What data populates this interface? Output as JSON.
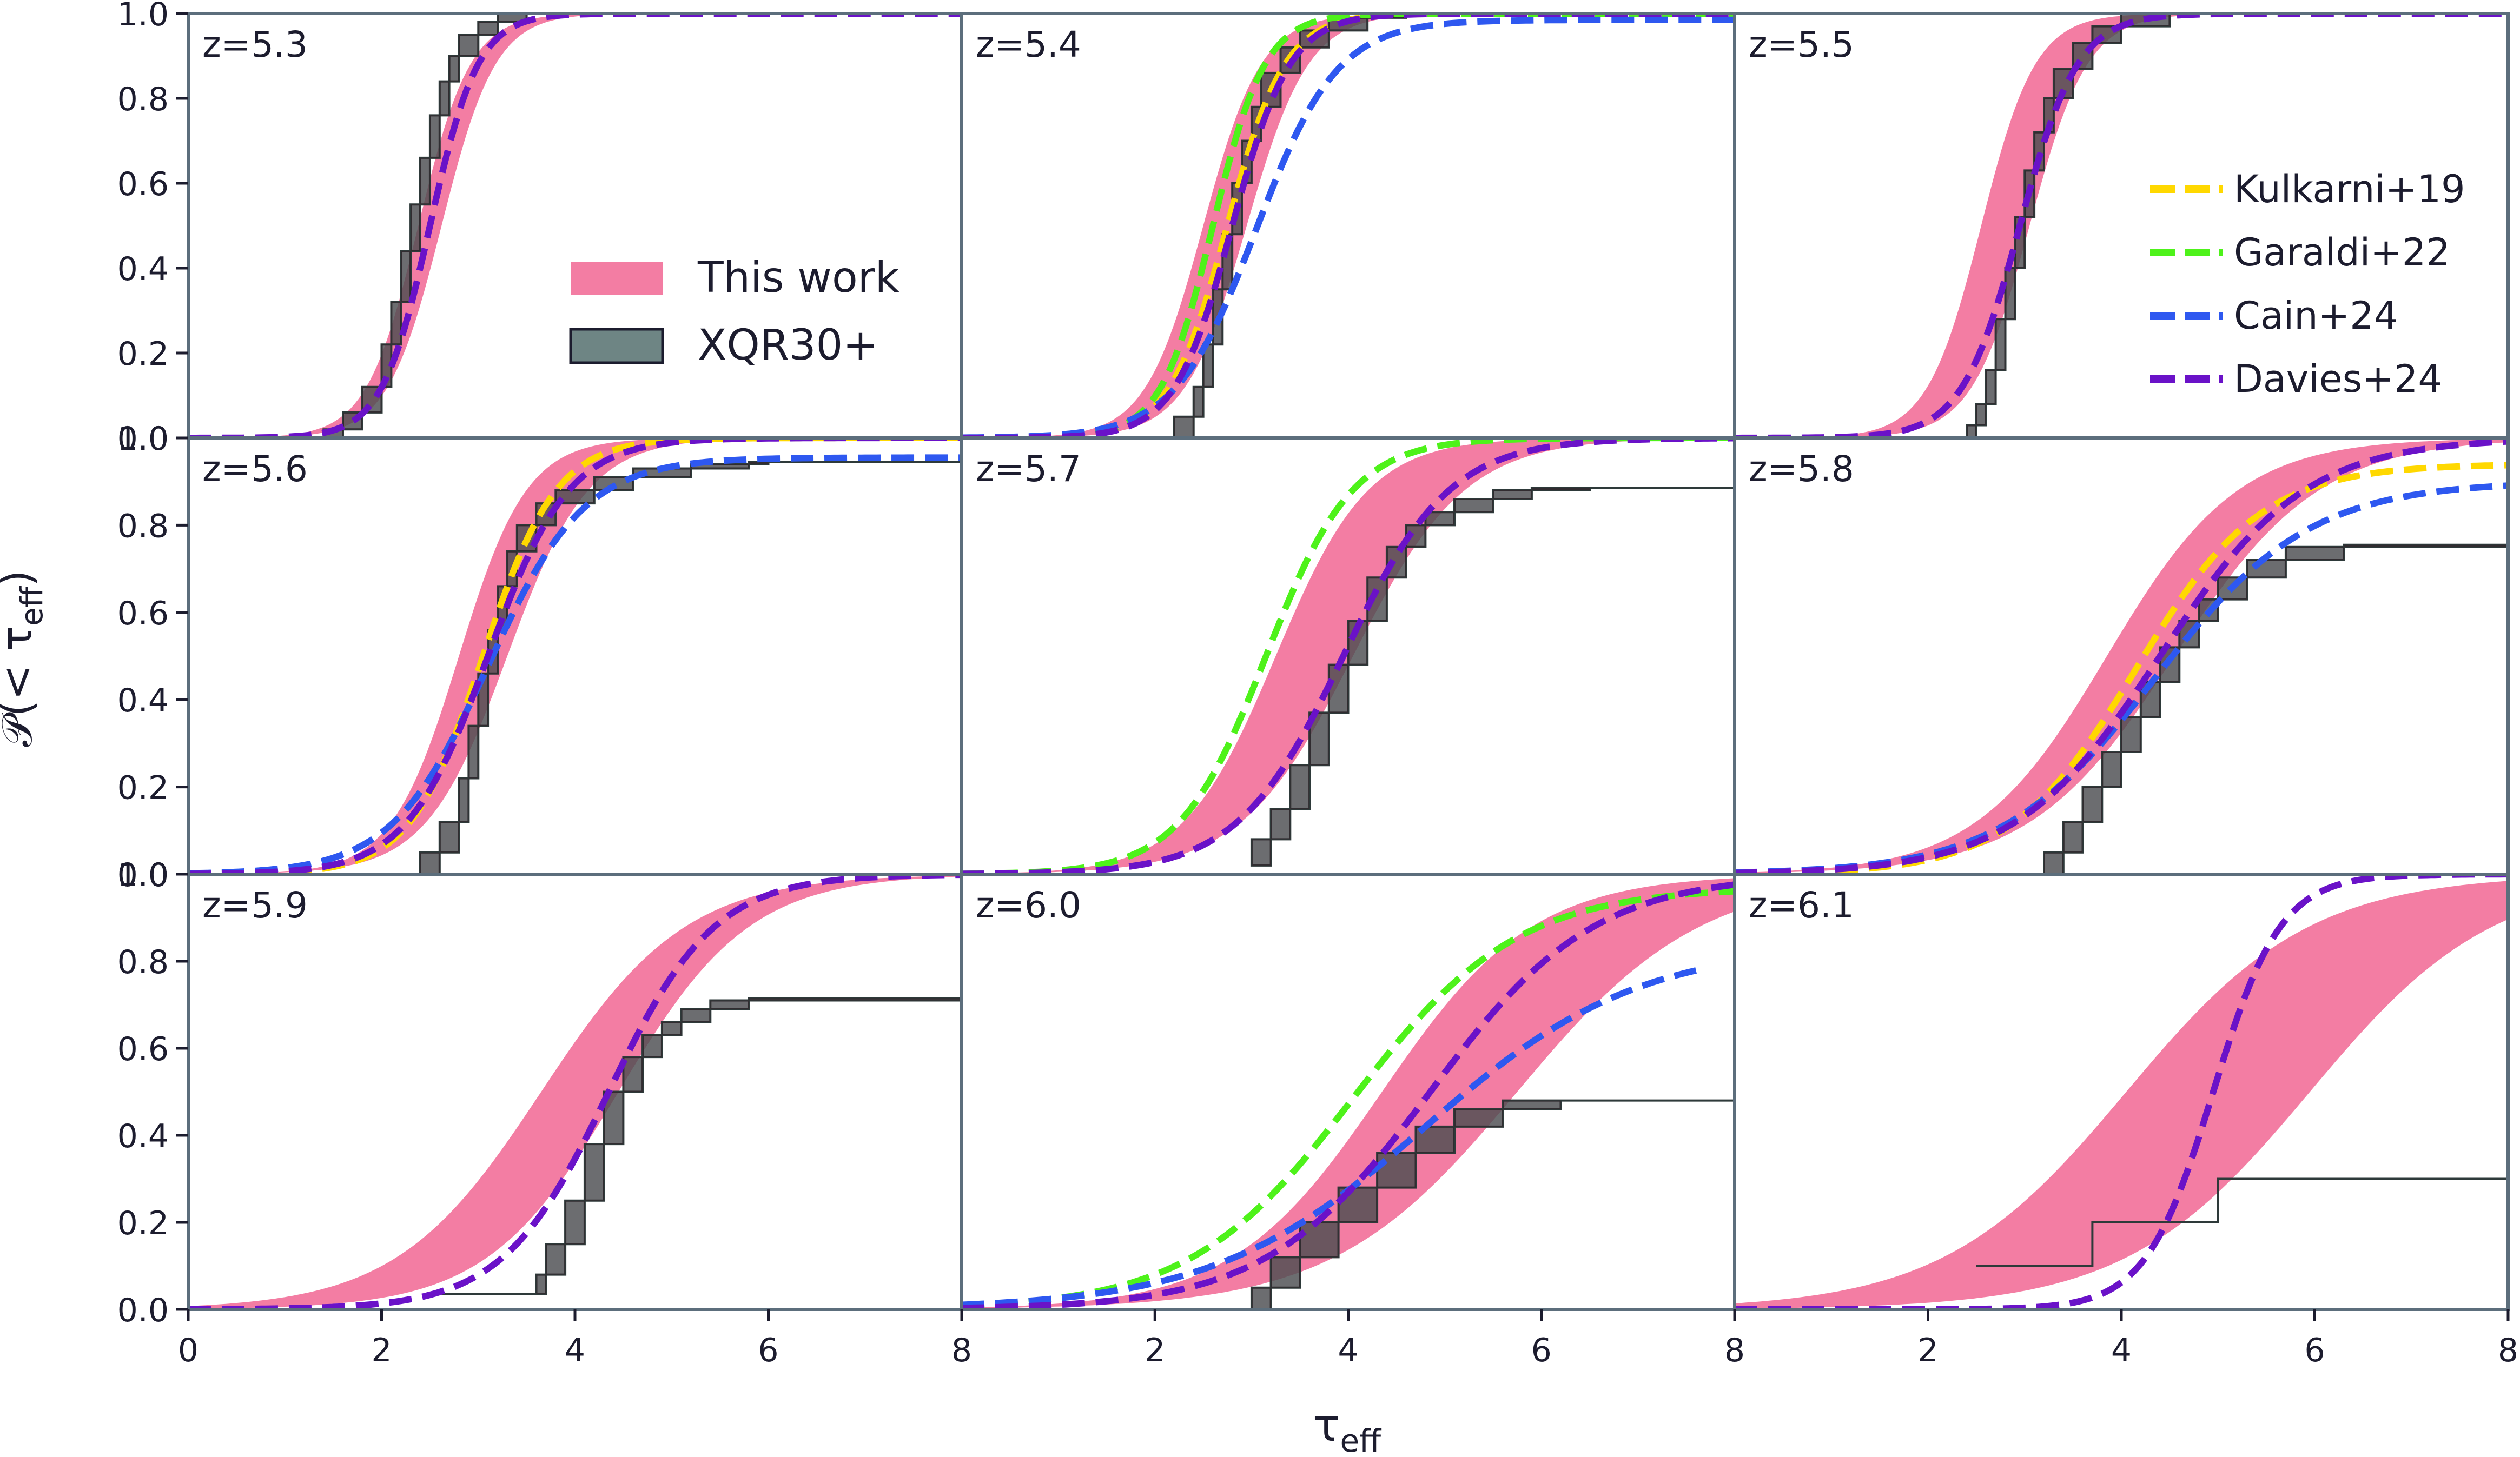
{
  "figure": {
    "ylabel_main": "𝒫(< τ",
    "ylabel_sub": "eff",
    "ylabel_close": ")",
    "xlabel_main": "τ",
    "xlabel_sub": "eff"
  },
  "chart_data": {
    "type": "line",
    "grid": false,
    "xlim": [
      0,
      8
    ],
    "ylim": [
      0,
      1
    ],
    "x_ticks": [
      "0",
      "2",
      "4",
      "6",
      "8"
    ],
    "y_ticks": [
      "0.0",
      "0.2",
      "0.4",
      "0.6",
      "0.8",
      "1.0"
    ],
    "colors": {
      "this_work": "#f0608f",
      "xqr30": "#55706e",
      "kulkarni": "#ffd800",
      "garaldi": "#4ef21a",
      "cain": "#2e58f0",
      "davies": "#6a12c8",
      "frame": "#5c6e7c"
    },
    "legend_left": {
      "location": "center-right of panel z=5.3",
      "entries": [
        {
          "key": "this_work",
          "label": "This work"
        },
        {
          "key": "xqr30",
          "label": "XQR30+"
        }
      ]
    },
    "legend_right": {
      "location": "center-right of panel z=5.5",
      "entries": [
        {
          "key": "kulkarni",
          "label": "Kulkarni+19"
        },
        {
          "key": "garaldi",
          "label": "Garaldi+22"
        },
        {
          "key": "cain",
          "label": "Cain+24"
        },
        {
          "key": "davies",
          "label": "Davies+24"
        }
      ]
    },
    "panels": [
      {
        "z_label": "z=5.3",
        "lo": {
          "m": 2.38,
          "s": 0.27
        },
        "hi": {
          "m": 2.62,
          "s": 0.28
        },
        "xqr": [
          [
            1.4,
            0.0
          ],
          [
            1.6,
            0.02
          ],
          [
            1.8,
            0.06
          ],
          [
            2.0,
            0.12
          ],
          [
            2.1,
            0.22
          ],
          [
            2.2,
            0.32
          ],
          [
            2.3,
            0.44
          ],
          [
            2.4,
            0.55
          ],
          [
            2.5,
            0.66
          ],
          [
            2.6,
            0.76
          ],
          [
            2.7,
            0.84
          ],
          [
            2.8,
            0.9
          ],
          [
            3.0,
            0.95
          ],
          [
            3.2,
            0.98
          ],
          [
            3.5,
            1.0
          ]
        ],
        "xqr_max": 6.0,
        "models": [
          {
            "key": "davies",
            "m": 2.5,
            "s": 0.25
          }
        ]
      },
      {
        "z_label": "z=5.4",
        "lo": {
          "m": 2.5,
          "s": 0.3
        },
        "hi": {
          "m": 2.95,
          "s": 0.32
        },
        "xqr": [
          [
            2.2,
            0.0
          ],
          [
            2.4,
            0.05
          ],
          [
            2.5,
            0.12
          ],
          [
            2.6,
            0.22
          ],
          [
            2.7,
            0.35
          ],
          [
            2.8,
            0.48
          ],
          [
            2.9,
            0.6
          ],
          [
            3.0,
            0.7
          ],
          [
            3.1,
            0.78
          ],
          [
            3.3,
            0.86
          ],
          [
            3.5,
            0.92
          ],
          [
            3.8,
            0.96
          ],
          [
            4.2,
            0.99
          ],
          [
            4.6,
            1.0
          ]
        ],
        "xqr_max": 5.8,
        "models": [
          {
            "key": "kulkarni",
            "m": 2.75,
            "s": 0.3
          },
          {
            "key": "garaldi",
            "m": 2.6,
            "s": 0.27
          },
          {
            "key": "cain",
            "m": 3.05,
            "s": 0.42,
            "cap": 0.985
          },
          {
            "key": "davies",
            "m": 2.8,
            "s": 0.3
          }
        ]
      },
      {
        "z_label": "z=5.5",
        "lo": {
          "m": 2.55,
          "s": 0.28
        },
        "hi": {
          "m": 3.05,
          "s": 0.3
        },
        "xqr": [
          [
            2.4,
            0.0
          ],
          [
            2.5,
            0.03
          ],
          [
            2.6,
            0.08
          ],
          [
            2.7,
            0.16
          ],
          [
            2.8,
            0.28
          ],
          [
            2.9,
            0.4
          ],
          [
            3.0,
            0.52
          ],
          [
            3.1,
            0.63
          ],
          [
            3.2,
            0.72
          ],
          [
            3.3,
            0.8
          ],
          [
            3.5,
            0.87
          ],
          [
            3.7,
            0.93
          ],
          [
            4.0,
            0.97
          ],
          [
            4.5,
            1.0
          ]
        ],
        "xqr_max": 5.9,
        "models": [
          {
            "key": "davies",
            "m": 2.95,
            "s": 0.3
          }
        ]
      },
      {
        "z_label": "z=5.6",
        "lo": {
          "m": 2.8,
          "s": 0.35
        },
        "hi": {
          "m": 3.3,
          "s": 0.42
        },
        "xqr": [
          [
            2.4,
            0.0
          ],
          [
            2.6,
            0.05
          ],
          [
            2.8,
            0.12
          ],
          [
            2.9,
            0.22
          ],
          [
            3.0,
            0.34
          ],
          [
            3.1,
            0.46
          ],
          [
            3.2,
            0.56
          ],
          [
            3.3,
            0.66
          ],
          [
            3.4,
            0.74
          ],
          [
            3.6,
            0.8
          ],
          [
            3.8,
            0.85
          ],
          [
            4.2,
            0.88
          ],
          [
            4.6,
            0.91
          ],
          [
            5.2,
            0.93
          ],
          [
            5.8,
            0.94
          ],
          [
            6.0,
            0.945
          ],
          [
            8.0,
            0.945
          ]
        ],
        "xqr_max": 8.0,
        "xqr_open": true,
        "models": [
          {
            "key": "kulkarni",
            "m": 3.05,
            "s": 0.38
          },
          {
            "key": "cain",
            "m": 3.1,
            "s": 0.5,
            "cap": 0.955
          },
          {
            "key": "davies",
            "m": 3.1,
            "s": 0.42
          }
        ]
      },
      {
        "z_label": "z=5.7",
        "lo": {
          "m": 3.25,
          "s": 0.48
        },
        "hi": {
          "m": 4.05,
          "s": 0.58
        },
        "xqr": [
          [
            3.0,
            0.02
          ],
          [
            3.2,
            0.08
          ],
          [
            3.4,
            0.15
          ],
          [
            3.6,
            0.25
          ],
          [
            3.8,
            0.37
          ],
          [
            4.0,
            0.48
          ],
          [
            4.2,
            0.58
          ],
          [
            4.4,
            0.68
          ],
          [
            4.6,
            0.75
          ],
          [
            4.8,
            0.8
          ],
          [
            5.1,
            0.83
          ],
          [
            5.5,
            0.86
          ],
          [
            5.9,
            0.88
          ],
          [
            6.5,
            0.885
          ],
          [
            8.0,
            0.885
          ]
        ],
        "xqr_max": 8.0,
        "xqr_open": true,
        "models": [
          {
            "key": "garaldi",
            "m": 3.15,
            "s": 0.45
          },
          {
            "key": "davies",
            "m": 3.95,
            "s": 0.55
          }
        ]
      },
      {
        "z_label": "z=5.8",
        "lo": {
          "m": 3.85,
          "s": 0.68
        },
        "hi": {
          "m": 4.55,
          "s": 0.75
        },
        "xqr": [
          [
            3.2,
            0.0
          ],
          [
            3.4,
            0.05
          ],
          [
            3.6,
            0.12
          ],
          [
            3.8,
            0.2
          ],
          [
            4.0,
            0.28
          ],
          [
            4.2,
            0.36
          ],
          [
            4.4,
            0.44
          ],
          [
            4.6,
            0.52
          ],
          [
            4.8,
            0.58
          ],
          [
            5.0,
            0.63
          ],
          [
            5.3,
            0.68
          ],
          [
            5.7,
            0.72
          ],
          [
            6.3,
            0.75
          ],
          [
            8.0,
            0.755
          ]
        ],
        "xqr_max": 8.0,
        "xqr_open": true,
        "models": [
          {
            "key": "kulkarni",
            "m": 4.15,
            "s": 0.65,
            "cap": 0.94
          },
          {
            "key": "cain",
            "m": 4.35,
            "s": 0.8,
            "cap": 0.9
          },
          {
            "key": "davies",
            "m": 4.4,
            "s": 0.75
          }
        ]
      },
      {
        "z_label": "z=5.9",
        "lo": {
          "m": 3.65,
          "s": 0.75
        },
        "hi": {
          "m": 4.45,
          "s": 0.68
        },
        "xqr": [
          [
            2.5,
            0.035
          ],
          [
            3.6,
            0.035
          ],
          [
            3.7,
            0.08
          ],
          [
            3.9,
            0.15
          ],
          [
            4.1,
            0.25
          ],
          [
            4.3,
            0.38
          ],
          [
            4.5,
            0.5
          ],
          [
            4.7,
            0.58
          ],
          [
            4.9,
            0.63
          ],
          [
            5.1,
            0.66
          ],
          [
            5.4,
            0.69
          ],
          [
            5.8,
            0.71
          ],
          [
            8.0,
            0.715
          ]
        ],
        "xqr_max": 8.0,
        "xqr_open": true,
        "models": [
          {
            "key": "davies",
            "m": 4.35,
            "s": 0.55
          }
        ]
      },
      {
        "z_label": "z=6.0",
        "lo": {
          "m": 4.35,
          "s": 0.78
        },
        "hi": {
          "m": 5.75,
          "s": 0.95
        },
        "xqr": [
          [
            3.0,
            0.0
          ],
          [
            3.2,
            0.05
          ],
          [
            3.5,
            0.12
          ],
          [
            3.9,
            0.2
          ],
          [
            4.3,
            0.28
          ],
          [
            4.7,
            0.36
          ],
          [
            5.1,
            0.42
          ],
          [
            5.6,
            0.46
          ],
          [
            6.2,
            0.48
          ],
          [
            8.0,
            0.48
          ]
        ],
        "xqr_max": 8.0,
        "xqr_open": true,
        "models": [
          {
            "key": "garaldi",
            "m": 4.05,
            "s": 0.85,
            "cap": 0.97
          },
          {
            "key": "cain",
            "m": 4.8,
            "s": 1.1,
            "cap": 0.84,
            "xmax": 7.6
          },
          {
            "key": "davies",
            "m": 4.85,
            "s": 0.85
          }
        ]
      },
      {
        "z_label": "z=6.1",
        "lo": {
          "m": 4.05,
          "s": 0.95
        },
        "hi": {
          "m": 5.95,
          "s": 0.95
        },
        "xqr": [
          [
            2.5,
            0.1
          ],
          [
            3.7,
            0.1
          ],
          [
            3.7,
            0.2
          ],
          [
            5.0,
            0.2
          ],
          [
            5.0,
            0.3
          ],
          [
            8.0,
            0.3
          ]
        ],
        "xqr_max": 8.0,
        "xqr_open": true,
        "models": [
          {
            "key": "davies",
            "m": 4.95,
            "s": 0.35
          }
        ]
      }
    ]
  }
}
